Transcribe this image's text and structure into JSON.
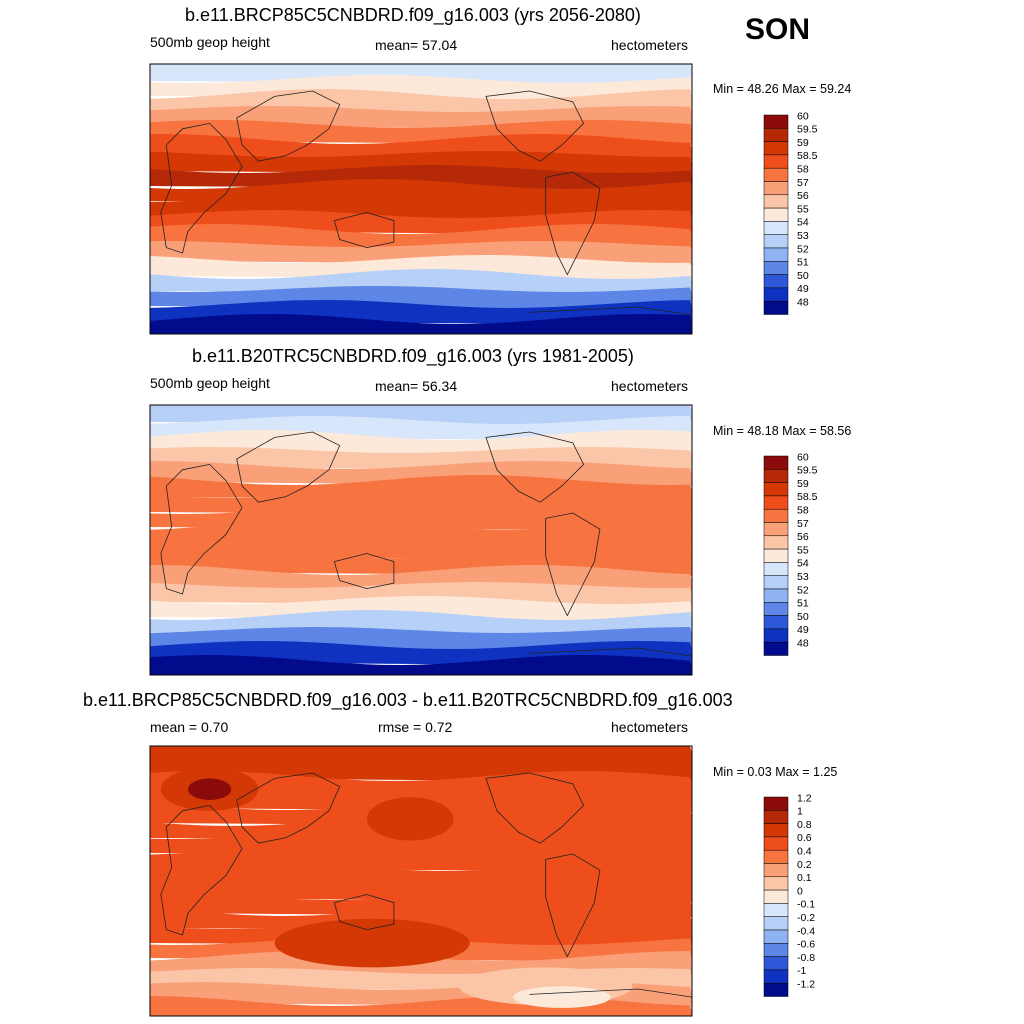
{
  "season": "SON",
  "panels": [
    {
      "id": "future",
      "title": "b.e11.BRCP85C5CNBDRD.f09_g16.003 (yrs 2056-2080)",
      "left_label": "500mb geop height",
      "center_label": "mean=  57.04",
      "units": "hectometers",
      "minmax": "Min =  48.26 Max =  59.24",
      "legend_labels": [
        "60",
        "59.5",
        "59",
        "58.5",
        "58",
        "57",
        "56",
        "55",
        "54",
        "53",
        "52",
        "51",
        "50",
        "49",
        "48"
      ],
      "colors": [
        "#8b0b0b",
        "#b52808",
        "#d43805",
        "#ee4e1b",
        "#f7733f",
        "#f9a079",
        "#fbc6a8",
        "#fde9d9",
        "#d8e6fb",
        "#b7d0f8",
        "#8fb2f3",
        "#5e86e6",
        "#2e58d8",
        "#0f33c0",
        "#020b8c"
      ]
    },
    {
      "id": "historical",
      "title": "b.e11.B20TRC5CNBDRD.f09_g16.003 (yrs 1981-2005)",
      "left_label": "500mb geop height",
      "center_label": "mean=  56.34",
      "units": "hectometers",
      "minmax": "Min =  48.18 Max =  58.56",
      "legend_labels": [
        "60",
        "59.5",
        "59",
        "58.5",
        "58",
        "57",
        "56",
        "55",
        "54",
        "53",
        "52",
        "51",
        "50",
        "49",
        "48"
      ],
      "colors": [
        "#8b0b0b",
        "#b52808",
        "#d43805",
        "#ee4e1b",
        "#f7733f",
        "#f9a079",
        "#fbc6a8",
        "#fde9d9",
        "#d8e6fb",
        "#b7d0f8",
        "#8fb2f3",
        "#5e86e6",
        "#2e58d8",
        "#0f33c0",
        "#020b8c"
      ]
    },
    {
      "id": "difference",
      "title": "b.e11.BRCP85C5CNBDRD.f09_g16.003 - b.e11.B20TRC5CNBDRD.f09_g16.003",
      "left_label": "mean =   0.70",
      "center_label": "rmse =   0.72",
      "units": "hectometers",
      "minmax": "Min =   0.03 Max =   1.25",
      "legend_labels": [
        "1.2",
        "1",
        "0.8",
        "0.6",
        "0.4",
        "0.2",
        "0.1",
        "0",
        "-0.1",
        "-0.2",
        "-0.4",
        "-0.6",
        "-0.8",
        "-1",
        "-1.2"
      ],
      "colors": [
        "#8b0b0b",
        "#b52808",
        "#d43805",
        "#ee4e1b",
        "#f7733f",
        "#f9a079",
        "#fbc6a8",
        "#fde9d9",
        "#d8e6fb",
        "#b7d0f8",
        "#8fb2f3",
        "#5e86e6",
        "#2e58d8",
        "#0f33c0",
        "#020b8c"
      ]
    }
  ],
  "chart_data": [
    {
      "type": "heatmap",
      "title": "b.e11.BRCP85C5CNBDRD.f09_g16.003 (yrs 2056-2080)",
      "variable": "500mb geop height",
      "units": "hectometers",
      "season": "SON",
      "mean": 57.04,
      "min": 48.26,
      "max": 59.24,
      "contour_levels": [
        48,
        49,
        50,
        51,
        52,
        53,
        54,
        55,
        56,
        57,
        58,
        58.5,
        59,
        59.5,
        60
      ],
      "band_levels_north_to_south": [
        54,
        55,
        56,
        57,
        58,
        58.5,
        59,
        59.5,
        59,
        59,
        58.5,
        58,
        57,
        55,
        53,
        51,
        49,
        48
      ]
    },
    {
      "type": "heatmap",
      "title": "b.e11.B20TRC5CNBDRD.f09_g16.003 (yrs 1981-2005)",
      "variable": "500mb geop height",
      "units": "hectometers",
      "season": "SON",
      "mean": 56.34,
      "min": 48.18,
      "max": 58.56,
      "contour_levels": [
        48,
        49,
        50,
        51,
        52,
        53,
        54,
        55,
        56,
        57,
        58,
        58.5,
        59,
        59.5,
        60
      ],
      "band_levels_north_to_south": [
        53,
        54,
        55,
        56,
        57,
        58,
        58,
        58,
        58,
        58,
        58,
        57,
        56,
        55,
        53,
        51,
        49,
        48
      ]
    },
    {
      "type": "heatmap",
      "title": "b.e11.BRCP85C5CNBDRD.f09_g16.003 - b.e11.B20TRC5CNBDRD.f09_g16.003",
      "units": "hectometers",
      "mean": 0.7,
      "rmse": 0.72,
      "min": 0.03,
      "max": 1.25,
      "contour_levels": [
        -1.2,
        -1,
        -0.8,
        -0.6,
        -0.4,
        -0.2,
        -0.1,
        0,
        0.1,
        0.2,
        0.4,
        0.6,
        0.8,
        1,
        1.2
      ],
      "band_levels_north_to_south": [
        0.8,
        0.8,
        0.6,
        0.6,
        0.6,
        0.6,
        0.6,
        0.6,
        0.6,
        0.6,
        0.6,
        0.6,
        0.6,
        0.4,
        0.2,
        0.1,
        0.2,
        0.4
      ]
    }
  ]
}
